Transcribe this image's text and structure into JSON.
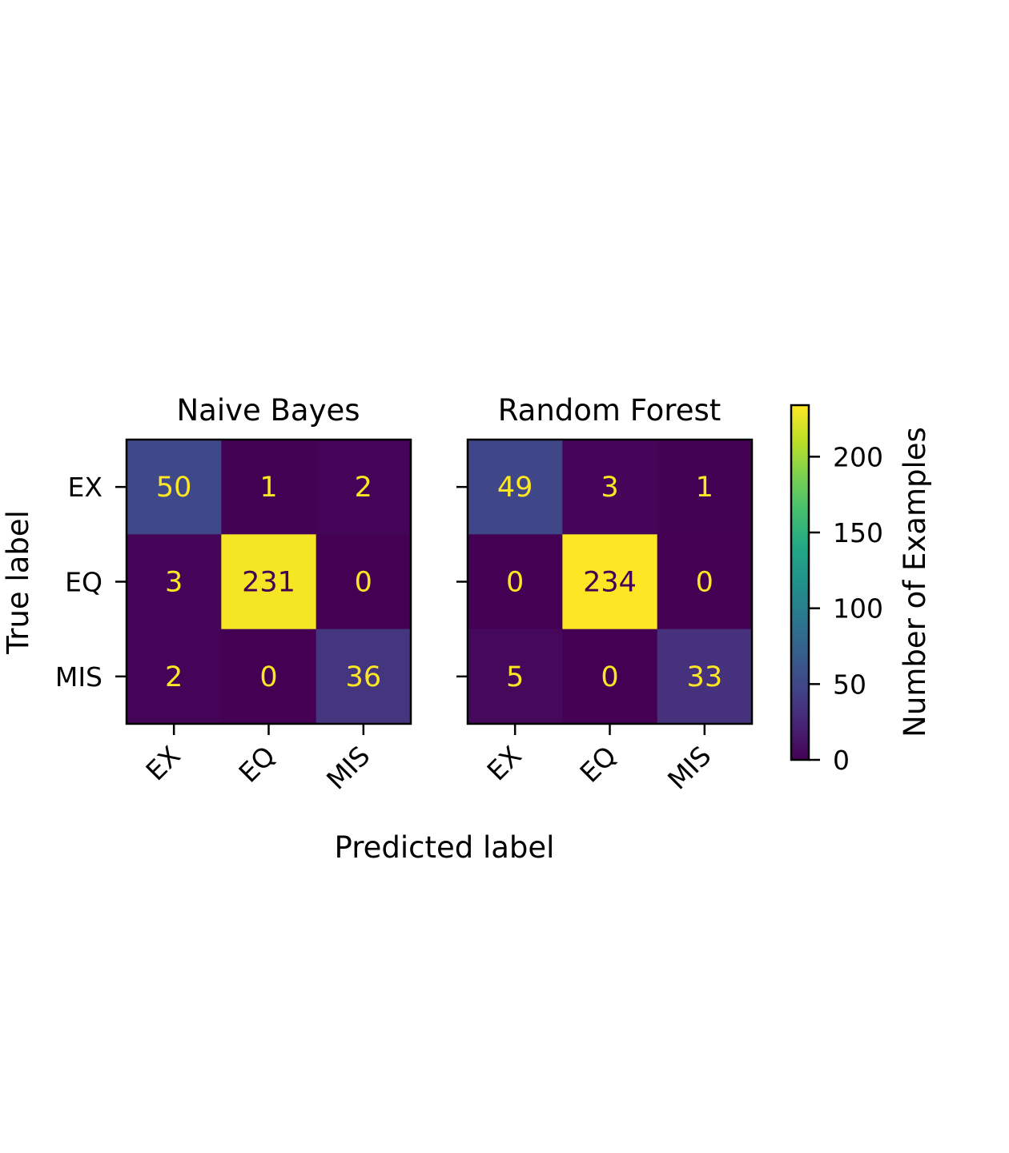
{
  "chart_data": {
    "type": "heatmap",
    "colormap": "viridis",
    "shared_y_label": "True label",
    "shared_x_label": "Predicted label",
    "row_labels": [
      "EX",
      "EQ",
      "MIS"
    ],
    "col_labels": [
      "EX",
      "EQ",
      "MIS"
    ],
    "panels": [
      {
        "title": "Naive Bayes",
        "matrix": [
          [
            50,
            1,
            2
          ],
          [
            3,
            231,
            0
          ],
          [
            2,
            0,
            36
          ]
        ]
      },
      {
        "title": "Random Forest",
        "matrix": [
          [
            49,
            3,
            1
          ],
          [
            0,
            234,
            0
          ],
          [
            5,
            0,
            33
          ]
        ]
      }
    ],
    "colorbar": {
      "label": "Number of Examples",
      "range": [
        0,
        234
      ],
      "ticks": [
        "0",
        "50",
        "100",
        "150",
        "200"
      ],
      "tick_values": [
        0,
        50,
        100,
        150,
        200
      ]
    },
    "text_color_light": "#fde725",
    "text_color_dark": "#440154"
  }
}
